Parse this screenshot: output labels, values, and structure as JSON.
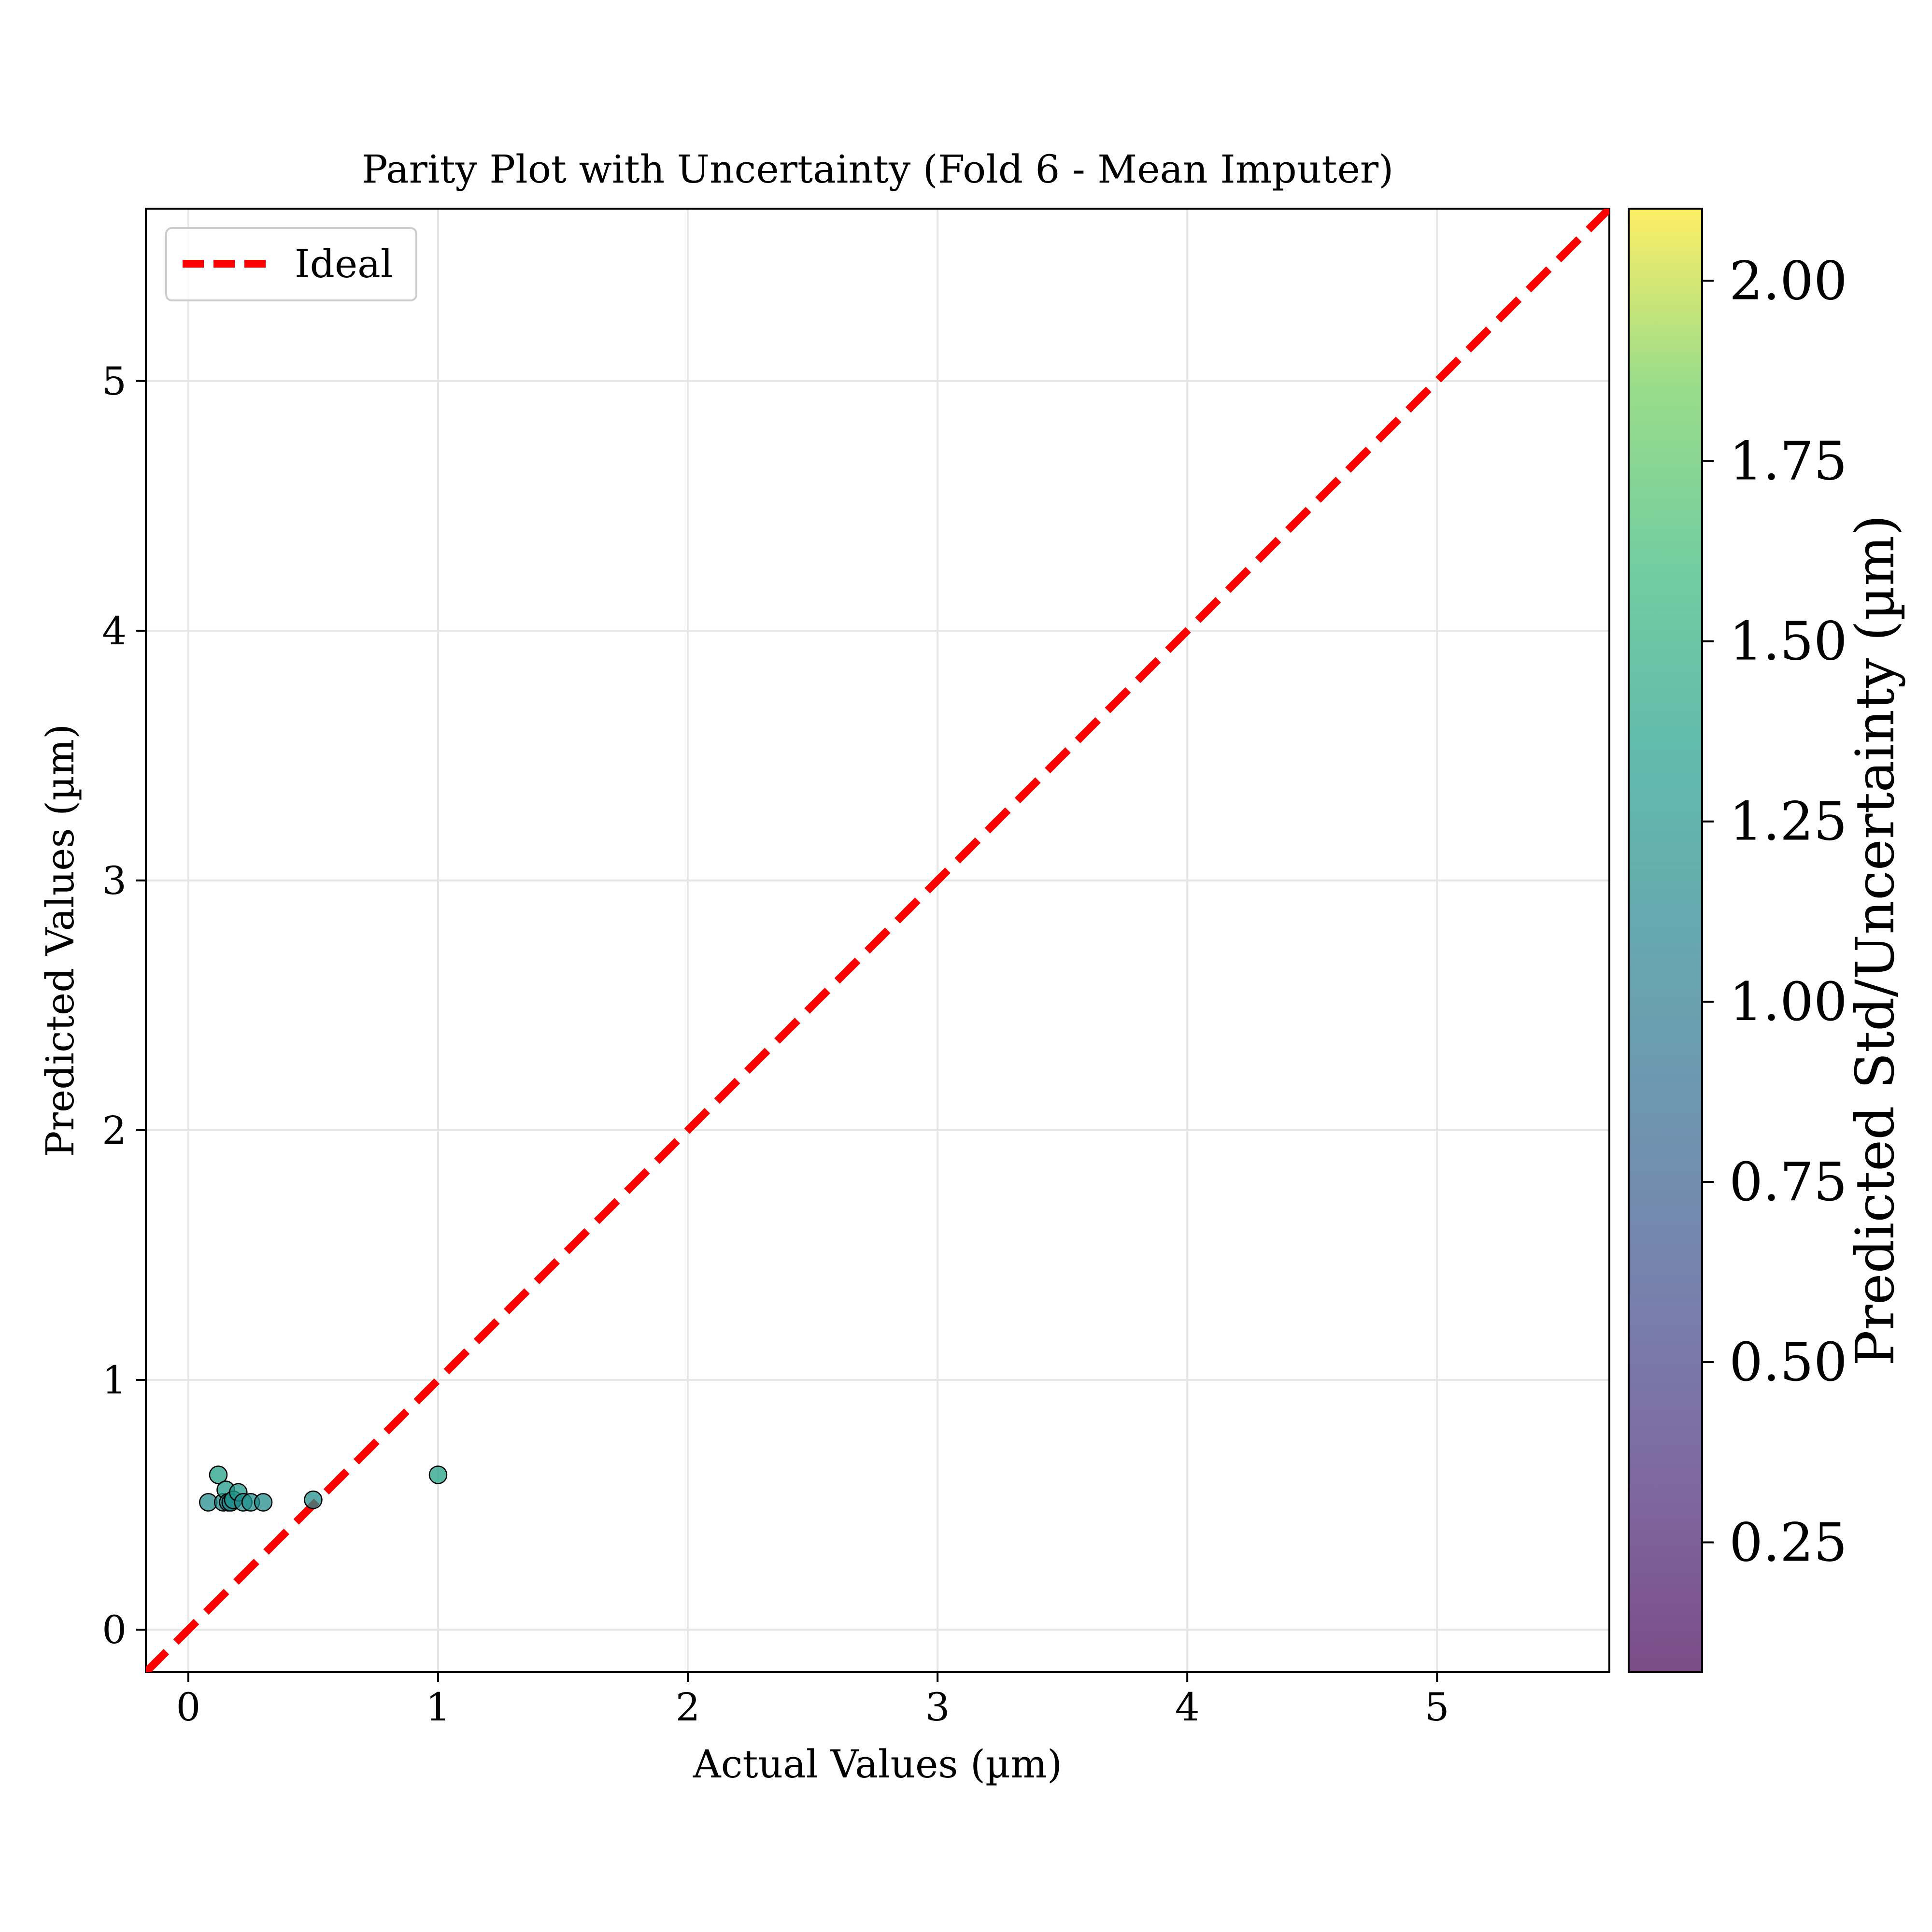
{
  "chart_data": {
    "type": "scatter",
    "title": "Parity Plot with Uncertainty (Fold 6 - Mean Imputer)",
    "xlabel": "Actual Values (µm)",
    "ylabel": "Predicted Values (µm)",
    "xlim": [
      -0.17,
      5.69
    ],
    "ylim": [
      -0.17,
      5.69
    ],
    "grid": true,
    "legend": {
      "placement": "top-left",
      "entries": [
        "Ideal"
      ]
    },
    "x_ticks": [
      "0",
      "1",
      "2",
      "3",
      "4",
      "5"
    ],
    "y_ticks": [
      "0",
      "1",
      "2",
      "3",
      "4",
      "5"
    ],
    "ideal_line": {
      "name": "Ideal",
      "color": "#ff0000",
      "style": "dashed",
      "from": [
        -0.17,
        -0.17
      ],
      "to": [
        5.69,
        5.69
      ]
    },
    "colorbar": {
      "label": "Predicted Std/Uncertainty (µm)",
      "range": [
        0.07,
        2.1
      ],
      "ticks": [
        "0.25",
        "0.50",
        "0.75",
        "1.00",
        "1.25",
        "1.50",
        "1.75",
        "2.00"
      ],
      "colormap": "viridis"
    },
    "points": [
      {
        "x": 0.08,
        "y": 0.51,
        "std": 1.2
      },
      {
        "x": 0.12,
        "y": 0.62,
        "std": 1.38
      },
      {
        "x": 0.14,
        "y": 0.51,
        "std": 1.2
      },
      {
        "x": 0.15,
        "y": 0.56,
        "std": 1.3
      },
      {
        "x": 0.16,
        "y": 0.51,
        "std": 1.1
      },
      {
        "x": 0.17,
        "y": 0.51,
        "std": 1.2
      },
      {
        "x": 0.18,
        "y": 0.52,
        "std": 1.22
      },
      {
        "x": 0.2,
        "y": 0.55,
        "std": 1.28
      },
      {
        "x": 0.22,
        "y": 0.51,
        "std": 1.2
      },
      {
        "x": 0.25,
        "y": 0.51,
        "std": 1.22
      },
      {
        "x": 0.3,
        "y": 0.51,
        "std": 1.18
      },
      {
        "x": 0.5,
        "y": 0.52,
        "std": 1.2
      },
      {
        "x": 1.0,
        "y": 0.62,
        "std": 1.38
      }
    ]
  }
}
